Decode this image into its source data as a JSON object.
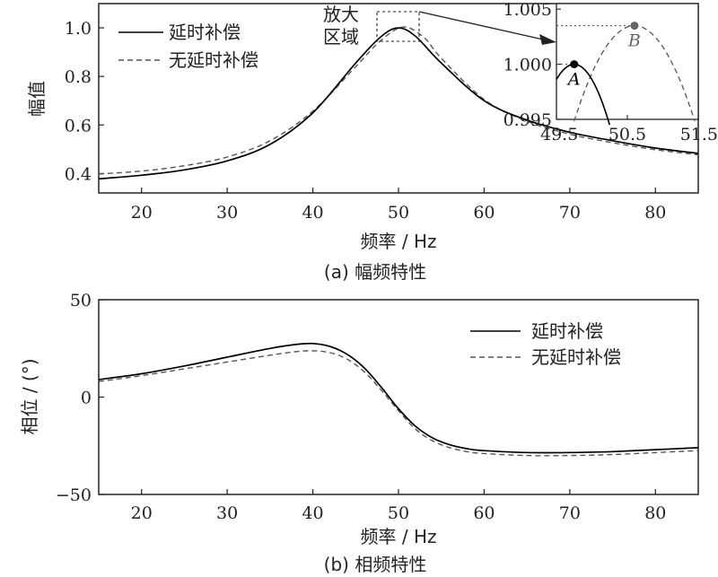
{
  "chart_data": [
    {
      "type": "line",
      "caption": "(a)  幅频特性",
      "xlabel": "频率 / Hz",
      "ylabel": "幅值",
      "xlim": [
        15,
        85
      ],
      "ylim": [
        0.32,
        1.1
      ],
      "xticks": [
        20,
        30,
        40,
        50,
        60,
        70,
        80
      ],
      "yticks": [
        0.4,
        0.6,
        0.8,
        1.0
      ],
      "ytick_labels": [
        "0.4",
        "0.6",
        "0.8",
        "1.0"
      ],
      "legend_position": "top-left",
      "grid": false,
      "series": [
        {
          "name": "延时补偿",
          "style": "solid",
          "color": "#000000",
          "x": [
            15,
            20,
            25,
            30,
            35,
            40,
            45,
            48,
            50,
            52,
            55,
            60,
            65,
            70,
            75,
            80,
            85
          ],
          "y": [
            0.378,
            0.393,
            0.415,
            0.452,
            0.52,
            0.65,
            0.855,
            0.965,
            1.0,
            0.965,
            0.855,
            0.7,
            0.62,
            0.57,
            0.535,
            0.505,
            0.483
          ]
        },
        {
          "name": "无延时补偿",
          "style": "dashed",
          "color": "#555555",
          "x": [
            15,
            20,
            25,
            30,
            35,
            40,
            45,
            48,
            50.6,
            53,
            55,
            60,
            65,
            70,
            75,
            80,
            85
          ],
          "y": [
            0.398,
            0.41,
            0.432,
            0.468,
            0.535,
            0.657,
            0.84,
            0.95,
            1.0035,
            0.96,
            0.875,
            0.705,
            0.615,
            0.562,
            0.527,
            0.498,
            0.477
          ]
        }
      ],
      "annotation": "放大\n区域",
      "inset": {
        "xlim": [
          49.5,
          51.5
        ],
        "ylim": [
          0.995,
          1.0055
        ],
        "xticks": [
          49.5,
          50.5,
          51.5
        ],
        "xtick_labels": [
          "49.5",
          "50.5",
          "51.5"
        ],
        "yticks": [
          0.995,
          1.0,
          1.005
        ],
        "ytick_labels": [
          "0.995",
          "1.000",
          "1.005"
        ],
        "points": [
          {
            "label": "A",
            "x": 49.75,
            "y": 1.0,
            "color": "#000000"
          },
          {
            "label": "B",
            "x": 50.6,
            "y": 1.0035,
            "color": "#666666"
          }
        ]
      }
    },
    {
      "type": "line",
      "caption": "(b)  相频特性",
      "xlabel": "频率 / Hz",
      "ylabel": "相位 / (°)",
      "xlim": [
        15,
        85
      ],
      "ylim": [
        -50,
        50
      ],
      "xticks": [
        20,
        30,
        40,
        50,
        60,
        70,
        80
      ],
      "yticks": [
        -50,
        0,
        50
      ],
      "ytick_labels": [
        "−50",
        "0",
        "50"
      ],
      "legend_position": "top-right",
      "grid": false,
      "series": [
        {
          "name": "延时补偿",
          "style": "solid",
          "color": "#000000",
          "x": [
            15,
            20,
            25,
            30,
            35,
            38,
            40,
            42,
            44,
            46,
            48,
            50,
            52,
            54,
            56,
            58,
            60,
            65,
            70,
            75,
            80,
            85
          ],
          "y": [
            9,
            12,
            16,
            20.5,
            25,
            27,
            27.5,
            26,
            22,
            15,
            5,
            -6,
            -15,
            -21,
            -24.5,
            -26.5,
            -27.5,
            -28.5,
            -28.5,
            -28,
            -27,
            -26
          ]
        },
        {
          "name": "无延时补偿",
          "style": "dashed",
          "color": "#555555",
          "x": [
            15,
            20,
            25,
            30,
            35,
            38,
            40,
            42,
            44,
            46,
            48,
            50,
            52,
            54,
            56,
            58,
            60,
            65,
            70,
            75,
            80,
            85
          ],
          "y": [
            8,
            11,
            14.5,
            18,
            21.5,
            23.3,
            23.8,
            22.8,
            19.5,
            13,
            3.5,
            -7,
            -16.5,
            -22.5,
            -26,
            -28,
            -29,
            -30,
            -30,
            -29.5,
            -28.5,
            -27.5
          ]
        }
      ]
    }
  ]
}
